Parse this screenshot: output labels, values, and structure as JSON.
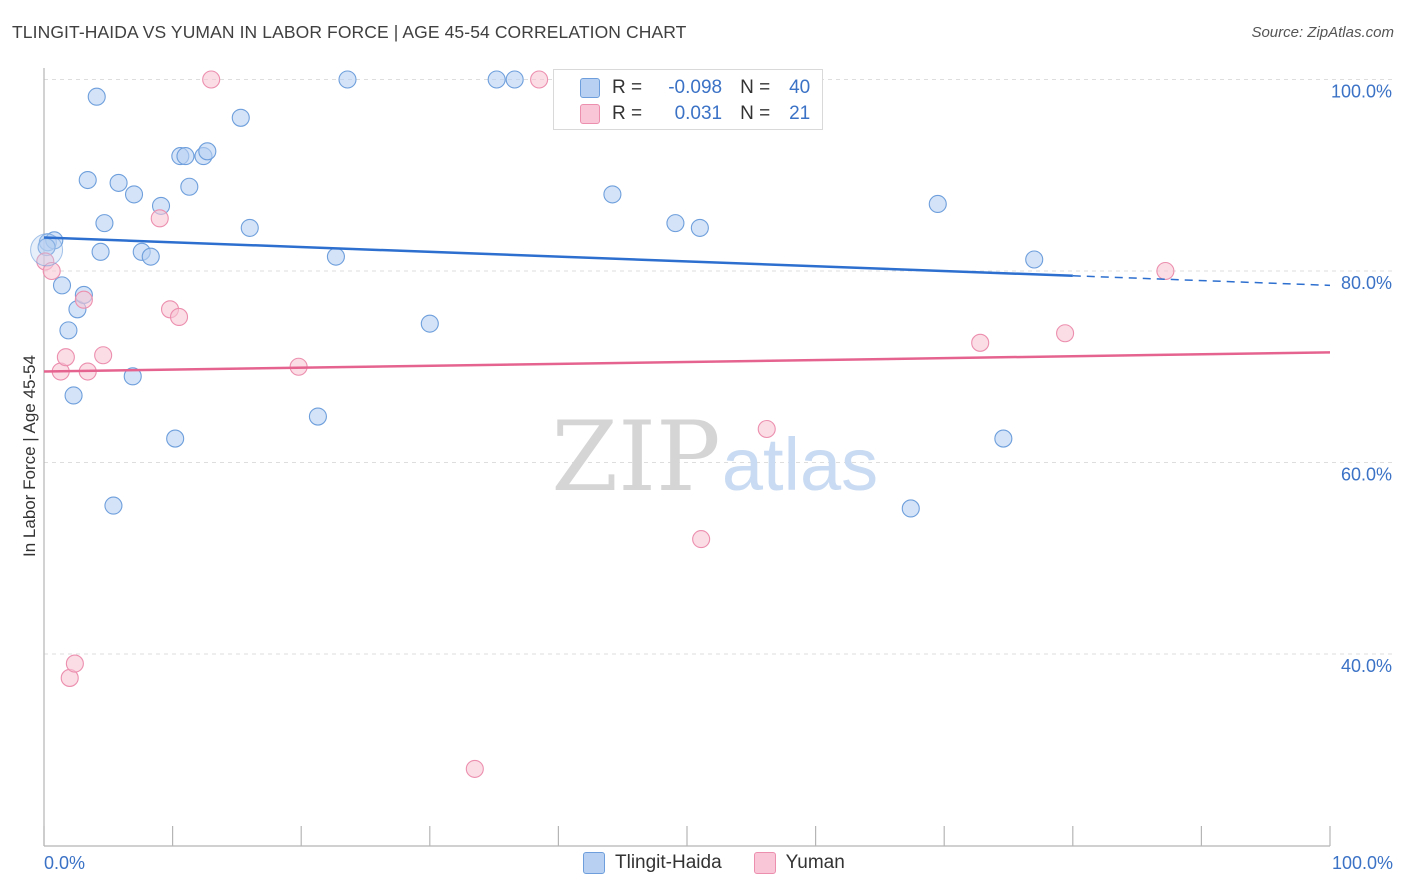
{
  "header": {
    "title": "TLINGIT-HAIDA VS YUMAN IN LABOR FORCE | AGE 45-54 CORRELATION CHART",
    "source": "Source: ZipAtlas.com"
  },
  "watermark": {
    "zip": "ZIP",
    "atlas": "atlas"
  },
  "legend": {
    "rows": [
      {
        "r_label": "R =",
        "r_value": "-0.098",
        "n_label": "N =",
        "n_value": "40"
      },
      {
        "r_label": "R =",
        "r_value": "0.031",
        "n_label": "N =",
        "n_value": "21"
      }
    ]
  },
  "colors": {
    "tlingit_fill": "#b8d1f2",
    "tlingit_stroke": "#6e9fdc",
    "tlingit_line": "#2d6fcf",
    "yuman_fill": "#f8c6d6",
    "yuman_stroke": "#ec8fae",
    "yuman_line": "#e5648f",
    "axis_tick_text": "#3b72c6",
    "grid": "#dddddd"
  },
  "chart_data": {
    "type": "scatter",
    "title": "TLINGIT-HAIDA VS YUMAN IN LABOR FORCE | AGE 45-54 CORRELATION CHART",
    "xlabel": "",
    "ylabel": "In Labor Force | Age 45-54",
    "xlim": [
      0,
      100
    ],
    "ylim": [
      20,
      102
    ],
    "x_tick_labels": [
      "0.0%",
      "100.0%"
    ],
    "y_ticks": [
      40,
      60,
      80,
      100
    ],
    "y_tick_labels": [
      "40.0%",
      "60.0%",
      "80.0%",
      "100.0%"
    ],
    "grid": true,
    "legend_position": "bottom-center",
    "series": [
      {
        "name": "Tlingit-Haida",
        "r": -0.098,
        "n": 40,
        "trend": {
          "x0": 0,
          "y0": 83.5,
          "x1": 80,
          "y1": 79.5,
          "x_end": 100,
          "y_end": 78.5
        },
        "points": [
          {
            "x": 0.3,
            "y": 83.0
          },
          {
            "x": 0.8,
            "y": 83.2
          },
          {
            "x": 1.4,
            "y": 78.5
          },
          {
            "x": 1.9,
            "y": 73.8
          },
          {
            "x": 2.3,
            "y": 67.0
          },
          {
            "x": 2.6,
            "y": 76.0
          },
          {
            "x": 3.1,
            "y": 77.5
          },
          {
            "x": 3.4,
            "y": 89.5
          },
          {
            "x": 4.1,
            "y": 98.2
          },
          {
            "x": 4.4,
            "y": 82.0
          },
          {
            "x": 4.7,
            "y": 85.0
          },
          {
            "x": 5.4,
            "y": 55.5
          },
          {
            "x": 5.8,
            "y": 89.2
          },
          {
            "x": 6.9,
            "y": 69.0
          },
          {
            "x": 7.0,
            "y": 88.0
          },
          {
            "x": 7.6,
            "y": 82.0
          },
          {
            "x": 8.3,
            "y": 81.5
          },
          {
            "x": 9.1,
            "y": 86.8
          },
          {
            "x": 10.2,
            "y": 62.5
          },
          {
            "x": 10.6,
            "y": 92.0
          },
          {
            "x": 11.0,
            "y": 92.0
          },
          {
            "x": 11.3,
            "y": 88.8
          },
          {
            "x": 12.4,
            "y": 92.0
          },
          {
            "x": 12.7,
            "y": 92.5
          },
          {
            "x": 15.3,
            "y": 96.0
          },
          {
            "x": 16.0,
            "y": 84.5
          },
          {
            "x": 21.3,
            "y": 64.8
          },
          {
            "x": 22.7,
            "y": 81.5
          },
          {
            "x": 23.6,
            "y": 100.0
          },
          {
            "x": 30.0,
            "y": 74.5
          },
          {
            "x": 35.2,
            "y": 100.0
          },
          {
            "x": 36.6,
            "y": 100.0
          },
          {
            "x": 44.2,
            "y": 88.0
          },
          {
            "x": 49.1,
            "y": 85.0
          },
          {
            "x": 51.0,
            "y": 84.5
          },
          {
            "x": 67.4,
            "y": 55.2
          },
          {
            "x": 69.5,
            "y": 87.0
          },
          {
            "x": 74.6,
            "y": 62.5
          },
          {
            "x": 77.0,
            "y": 81.2
          },
          {
            "x": 0.2,
            "y": 82.5
          }
        ]
      },
      {
        "name": "Yuman",
        "r": 0.031,
        "n": 21,
        "trend": {
          "x0": 0,
          "y0": 69.5,
          "x1": 100,
          "y1": 71.5
        },
        "points": [
          {
            "x": 0.1,
            "y": 81.0
          },
          {
            "x": 0.6,
            "y": 80.0
          },
          {
            "x": 1.3,
            "y": 69.5
          },
          {
            "x": 1.7,
            "y": 71.0
          },
          {
            "x": 2.0,
            "y": 37.5
          },
          {
            "x": 2.4,
            "y": 39.0
          },
          {
            "x": 3.1,
            "y": 77.0
          },
          {
            "x": 3.4,
            "y": 69.5
          },
          {
            "x": 4.6,
            "y": 71.2
          },
          {
            "x": 9.0,
            "y": 85.5
          },
          {
            "x": 9.8,
            "y": 76.0
          },
          {
            "x": 10.5,
            "y": 75.2
          },
          {
            "x": 13.0,
            "y": 100.0
          },
          {
            "x": 19.8,
            "y": 70.0
          },
          {
            "x": 33.5,
            "y": 28.0
          },
          {
            "x": 38.5,
            "y": 100.0
          },
          {
            "x": 51.1,
            "y": 52.0
          },
          {
            "x": 56.2,
            "y": 63.5
          },
          {
            "x": 72.8,
            "y": 72.5
          },
          {
            "x": 79.4,
            "y": 73.5
          },
          {
            "x": 87.2,
            "y": 80.0
          }
        ]
      }
    ]
  }
}
